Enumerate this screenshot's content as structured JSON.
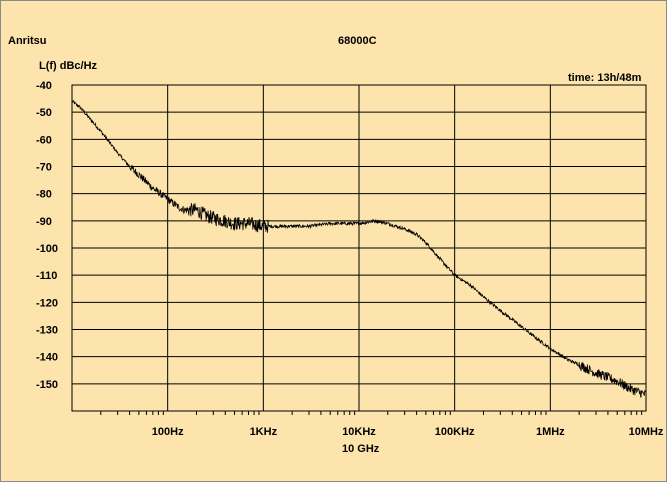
{
  "header": {
    "brand": "Anritsu",
    "model": "68000C",
    "time_label": "time:  13h/48m"
  },
  "colors": {
    "background": "#fde4ad",
    "trace": "#000000",
    "grid": "#000000"
  },
  "chart_data": {
    "type": "line",
    "title": "68000C",
    "ylabel": "L(f) dBc/Hz",
    "xlabel": "10 GHz",
    "x_scale": "log",
    "xlim": [
      10,
      10000000
    ],
    "ylim": [
      -160,
      -40
    ],
    "grid": true,
    "y_ticks": [
      -40,
      -50,
      -60,
      -70,
      -80,
      -90,
      -100,
      -110,
      -120,
      -130,
      -140,
      -150
    ],
    "x_ticks": [
      {
        "value": 100,
        "label": "100Hz"
      },
      {
        "value": 1000,
        "label": "1KHz"
      },
      {
        "value": 10000,
        "label": "10KHz"
      },
      {
        "value": 100000,
        "label": "100KHz"
      },
      {
        "value": 1000000,
        "label": "1MHz"
      },
      {
        "value": 10000000,
        "label": "10MHz"
      }
    ],
    "series": [
      {
        "x": [
          10,
          12,
          15,
          20,
          30,
          40,
          50,
          70,
          100,
          130,
          150,
          200,
          250,
          300,
          400,
          500,
          700,
          1000,
          1500,
          2000,
          3000,
          5000,
          7000,
          10000,
          15000,
          20000,
          30000,
          40000,
          50000,
          70000,
          100000,
          150000,
          200000,
          300000,
          500000,
          700000,
          1000000,
          1500000,
          2000000,
          3000000,
          5000000,
          7000000,
          10000000
        ],
        "y": [
          -46,
          -48,
          -52,
          -57,
          -65,
          -70,
          -73,
          -78,
          -82,
          -85,
          -86,
          -86,
          -88,
          -89,
          -90,
          -91,
          -91,
          -92,
          -92,
          -92,
          -92,
          -91,
          -91,
          -91,
          -90,
          -91,
          -93,
          -95,
          -98,
          -104,
          -110,
          -114,
          -118,
          -123,
          -129,
          -133,
          -137,
          -141,
          -143,
          -146,
          -149,
          -152,
          -154
        ]
      }
    ]
  }
}
